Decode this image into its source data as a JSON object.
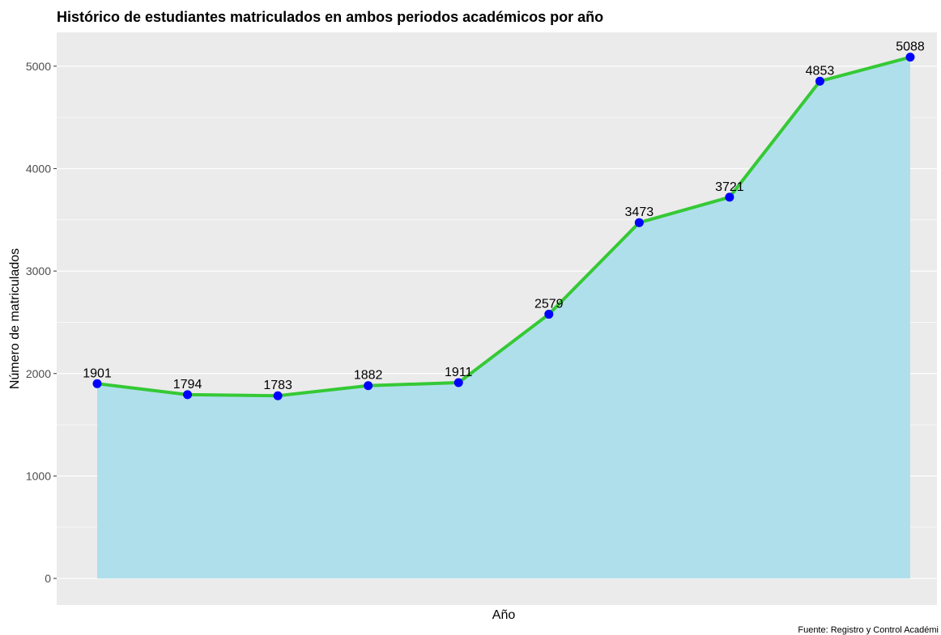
{
  "chart_data": {
    "type": "area",
    "title": "Histórico de estudiantes matriculados en ambos periodos académicos por año",
    "xlabel": "Año",
    "ylabel": "Número de matriculados",
    "caption": "Fuente: Registro y Control Académi",
    "x_tick_labels": [],
    "values": [
      1901,
      1794,
      1783,
      1882,
      1911,
      2579,
      3473,
      3721,
      4853,
      5088
    ],
    "ylim": [
      -260,
      5330
    ],
    "y_ticks": [
      0,
      1000,
      2000,
      3000,
      4000,
      5000
    ],
    "grid": true,
    "legend": "none",
    "colors": {
      "panel": "#ebebeb",
      "grid": "#ffffff",
      "area": "#b0dfec",
      "line": "#35c935",
      "point": "#0000ff"
    }
  }
}
